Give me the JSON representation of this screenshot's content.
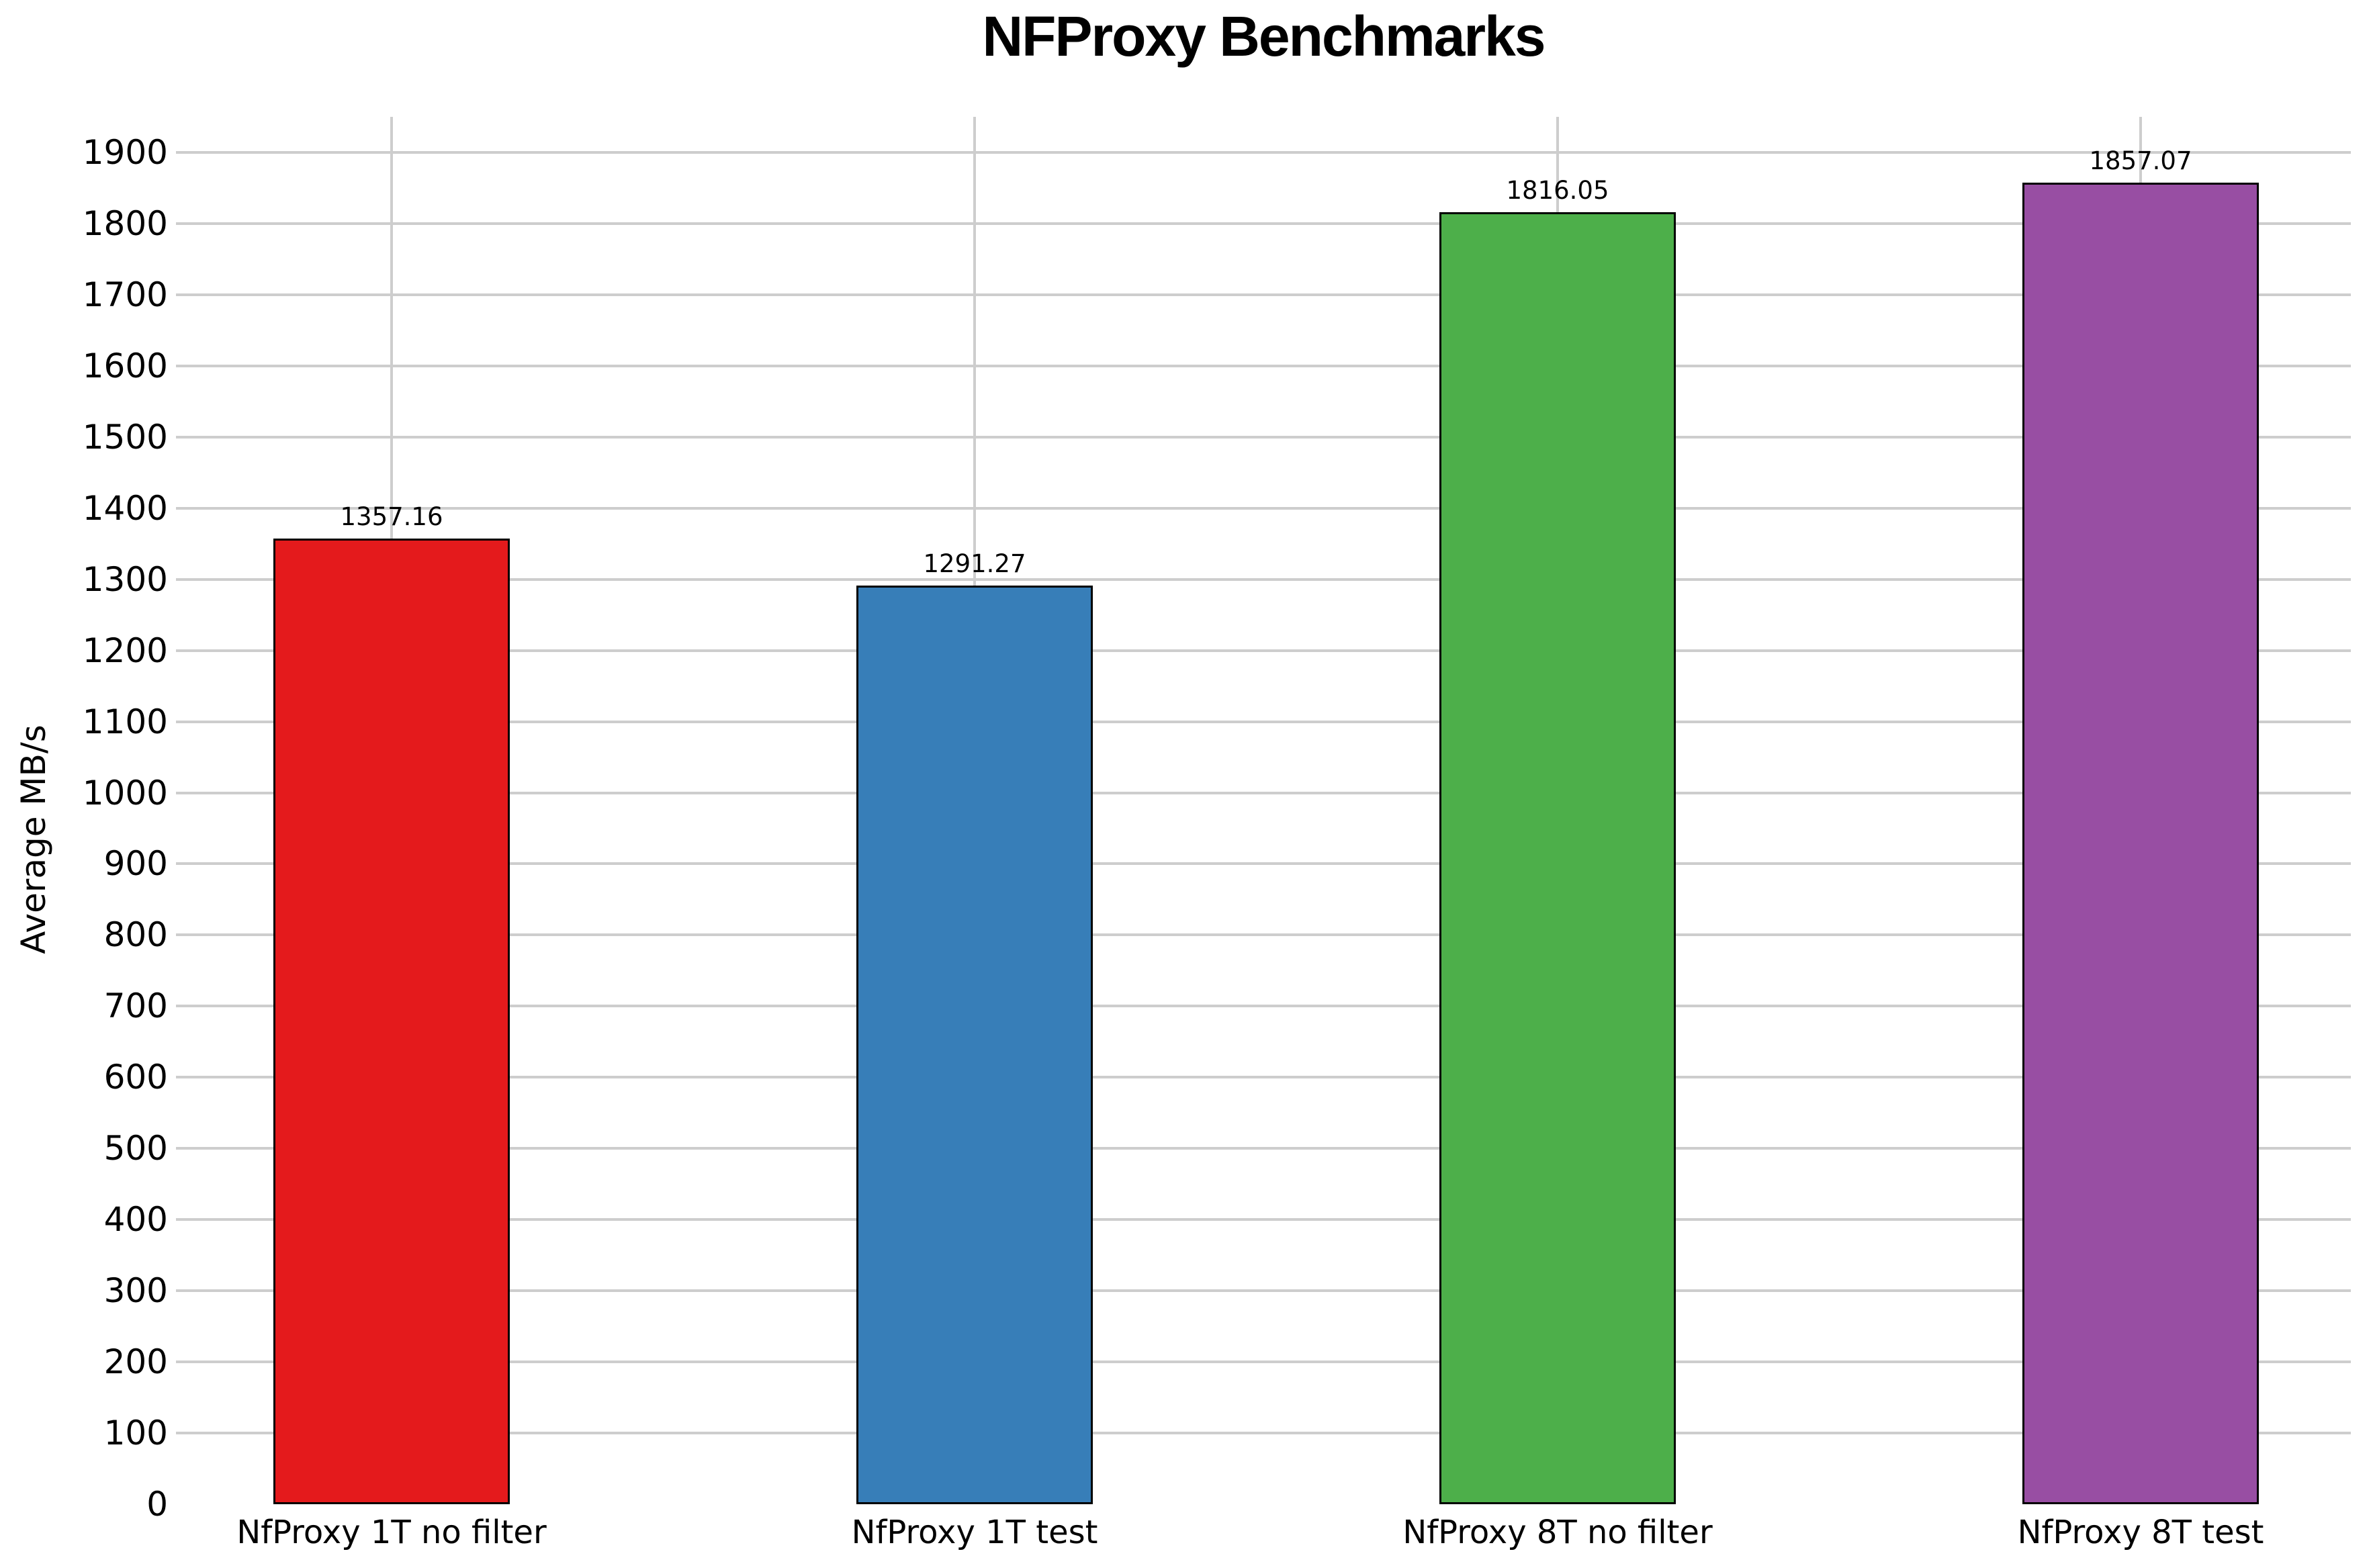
{
  "page": {
    "background_color": "#ffffff",
    "text_color": "#000000"
  },
  "chart_data": {
    "type": "bar",
    "title": "NFProxy Benchmarks",
    "xlabel": "",
    "ylabel": "Average MB/s",
    "categories": [
      "NfProxy 1T no filter",
      "NfProxy 1T test",
      "NfProxy 8T no filter",
      "NfProxy 8T test"
    ],
    "values": [
      1357.16,
      1291.27,
      1816.05,
      1857.07
    ],
    "value_labels": [
      "1357.16",
      "1291.27",
      "1816.05",
      "1857.07"
    ],
    "bar_colors": [
      "#e41a1c",
      "#377eb8",
      "#4daf4a",
      "#984ea3"
    ],
    "bar_edge_color": "#000000",
    "ylim": [
      0,
      1950
    ],
    "yticks": [
      0,
      100,
      200,
      300,
      400,
      500,
      600,
      700,
      800,
      900,
      1000,
      1100,
      1200,
      1300,
      1400,
      1500,
      1600,
      1700,
      1800,
      1900
    ],
    "grid": true,
    "grid_color": "#cdcdcd",
    "legend_position": "none"
  }
}
